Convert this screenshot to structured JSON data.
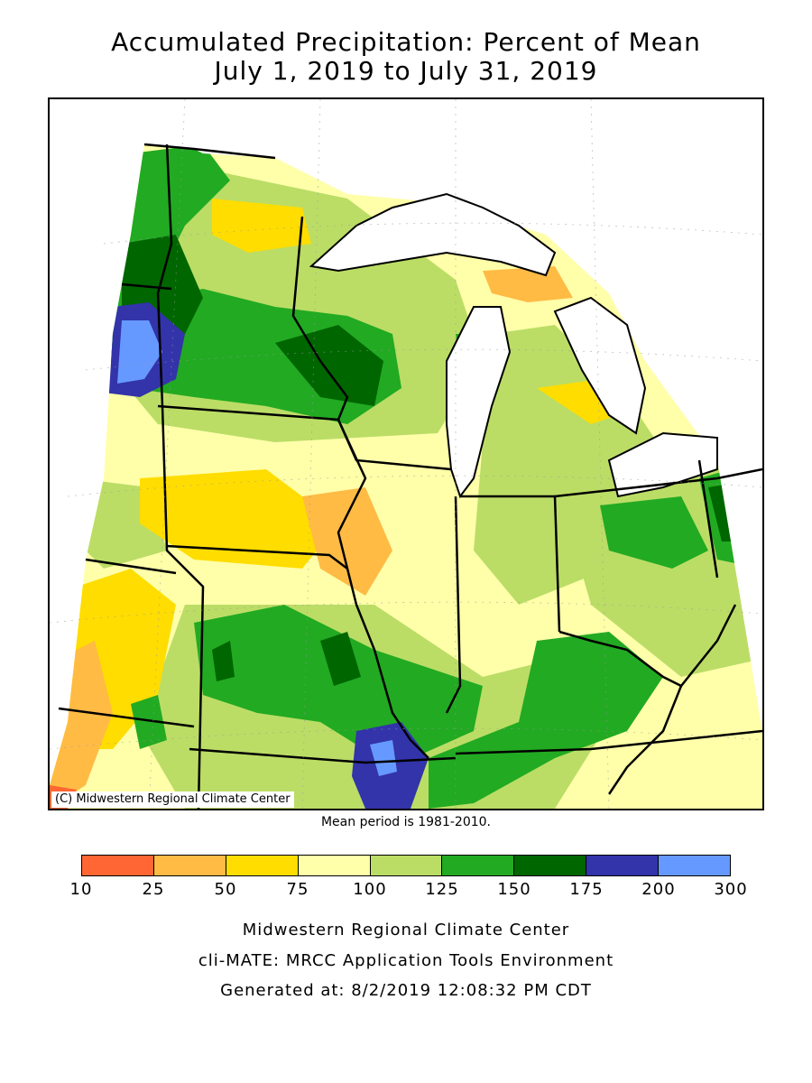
{
  "title_line1": "Accumulated Precipitation: Percent of Mean",
  "title_line2": "July 1, 2019 to July 31, 2019",
  "copyright": "(C) Midwestern Regional Climate Center",
  "mean_period": "Mean period is 1981-2010.",
  "legend": {
    "colors": [
      "#ff6633",
      "#ffbb44",
      "#ffdd00",
      "#ffffaa",
      "#bbdd66",
      "#22aa22",
      "#006600",
      "#3333aa",
      "#6699ff"
    ],
    "ticks": [
      "10",
      "25",
      "50",
      "75",
      "100",
      "125",
      "150",
      "175",
      "200",
      "300"
    ]
  },
  "footer": {
    "line1": "Midwestern Regional Climate Center",
    "line2": "cli-MATE: MRCC Application Tools Environment",
    "line3": "Generated at: 8/2/2019 12:08:32 PM CDT"
  }
}
